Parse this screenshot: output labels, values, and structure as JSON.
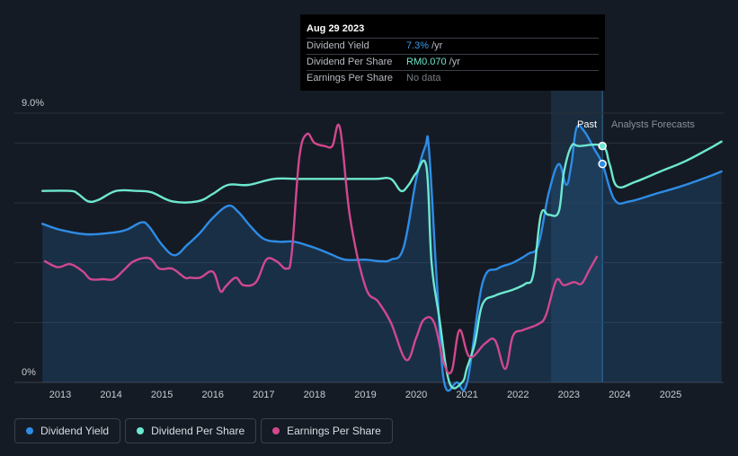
{
  "tooltip": {
    "date": "Aug 29 2023",
    "rows": [
      {
        "label": "Dividend Yield",
        "value": "7.3%",
        "unit": "/yr",
        "color": "#3b9bea"
      },
      {
        "label": "Dividend Per Share",
        "value": "RM0.070",
        "unit": "/yr",
        "color": "#6de8d0"
      },
      {
        "label": "Earnings Per Share",
        "value": "No data",
        "unit": "",
        "color": "#7a7f87"
      }
    ]
  },
  "legend": [
    {
      "label": "Dividend Yield",
      "color": "#2e8ce6"
    },
    {
      "label": "Dividend Per Share",
      "color": "#6de8d0"
    },
    {
      "label": "Earnings Per Share",
      "color": "#d0488f"
    }
  ],
  "chart_data": {
    "type": "line",
    "y_top_label": "9.0%",
    "y_bottom_label": "0%",
    "ylim": [
      0,
      9
    ],
    "xlim": [
      2012.65,
      2026.0
    ],
    "x_ticks": [
      "2013",
      "2014",
      "2015",
      "2016",
      "2017",
      "2018",
      "2019",
      "2020",
      "2021",
      "2022",
      "2023",
      "2024",
      "2025"
    ],
    "past_label": "Past",
    "forecast_label": "Analysts Forecasts",
    "past_region": [
      2022.65,
      2023.66
    ],
    "grid": true,
    "series": [
      {
        "name": "Dividend Yield",
        "color": "#2e8ce6",
        "fill": true,
        "x": [
          2012.65,
          2013.0,
          2013.5,
          2014.0,
          2014.3,
          2014.6,
          2014.75,
          2015.0,
          2015.25,
          2015.5,
          2015.75,
          2016.0,
          2016.3,
          2016.5,
          2016.75,
          2017.0,
          2017.3,
          2017.6,
          2018.0,
          2018.3,
          2018.6,
          2019.0,
          2019.3,
          2019.5,
          2019.75,
          2020.0,
          2020.18,
          2020.25,
          2020.4,
          2020.55,
          2020.8,
          2021.0,
          2021.3,
          2021.6,
          2021.9,
          2022.2,
          2022.4,
          2022.6,
          2022.8,
          2022.95,
          2023.05,
          2023.15,
          2023.3,
          2023.5,
          2023.66,
          2023.9,
          2024.2,
          2024.7,
          2025.2,
          2025.7,
          2026.0
        ],
        "y": [
          5.3,
          5.1,
          4.95,
          5.0,
          5.1,
          5.35,
          5.2,
          4.6,
          4.25,
          4.6,
          5.0,
          5.5,
          5.9,
          5.7,
          5.2,
          4.8,
          4.7,
          4.7,
          4.5,
          4.3,
          4.1,
          4.1,
          4.05,
          4.1,
          4.5,
          6.8,
          7.9,
          7.8,
          3.5,
          0.0,
          0.0,
          0.0,
          3.3,
          3.8,
          4.0,
          4.3,
          4.6,
          6.3,
          7.3,
          6.6,
          7.3,
          8.5,
          8.4,
          7.8,
          7.3,
          6.1,
          6.05,
          6.3,
          6.55,
          6.85,
          7.05
        ]
      },
      {
        "name": "Dividend Per Share",
        "color": "#6de8d0",
        "fill": false,
        "x": [
          2012.65,
          2013.2,
          2013.35,
          2013.55,
          2013.75,
          2014.1,
          2014.5,
          2014.8,
          2015.2,
          2015.7,
          2016.0,
          2016.3,
          2016.7,
          2017.2,
          2017.7,
          2018.2,
          2018.7,
          2019.2,
          2019.5,
          2019.7,
          2019.85,
          2020.0,
          2020.2,
          2020.3,
          2020.45,
          2020.65,
          2020.9,
          2021.0,
          2021.15,
          2021.3,
          2021.55,
          2021.9,
          2022.15,
          2022.3,
          2022.45,
          2022.6,
          2022.8,
          2022.9,
          2023.05,
          2023.2,
          2023.66,
          2023.8,
          2023.95,
          2024.3,
          2024.8,
          2025.3,
          2025.8,
          2026.0
        ],
        "y": [
          6.4,
          6.4,
          6.3,
          6.05,
          6.1,
          6.4,
          6.4,
          6.35,
          6.05,
          6.05,
          6.3,
          6.6,
          6.6,
          6.8,
          6.8,
          6.8,
          6.8,
          6.8,
          6.8,
          6.4,
          6.6,
          7.0,
          7.2,
          4.0,
          2.2,
          0.0,
          0.0,
          0.5,
          1.3,
          2.6,
          2.9,
          3.1,
          3.3,
          3.6,
          5.6,
          5.6,
          5.7,
          7.0,
          7.9,
          7.9,
          7.9,
          7.3,
          6.55,
          6.7,
          7.05,
          7.4,
          7.85,
          8.05
        ]
      },
      {
        "name": "Earnings Per Share",
        "color": "#d0488f",
        "fill": false,
        "x": [
          2012.7,
          2012.95,
          2013.2,
          2013.45,
          2013.6,
          2013.85,
          2014.05,
          2014.25,
          2014.45,
          2014.75,
          2014.95,
          2015.2,
          2015.45,
          2015.55,
          2015.75,
          2016.0,
          2016.15,
          2016.25,
          2016.45,
          2016.6,
          2016.85,
          2017.05,
          2017.25,
          2017.45,
          2017.55,
          2017.7,
          2017.85,
          2018.0,
          2018.2,
          2018.35,
          2018.5,
          2018.7,
          2019.0,
          2019.25,
          2019.5,
          2019.8,
          2020.0,
          2020.15,
          2020.35,
          2020.55,
          2020.7,
          2020.85,
          2021.05,
          2021.35,
          2021.55,
          2021.75,
          2021.9,
          2022.1,
          2022.4,
          2022.55,
          2022.75,
          2022.9,
          2023.1,
          2023.25,
          2023.4,
          2023.55
        ],
        "y": [
          4.05,
          3.85,
          3.95,
          3.7,
          3.45,
          3.45,
          3.45,
          3.75,
          4.05,
          4.15,
          3.8,
          3.8,
          3.5,
          3.5,
          3.5,
          3.7,
          3.05,
          3.2,
          3.5,
          3.25,
          3.35,
          4.1,
          4.05,
          3.8,
          4.3,
          7.5,
          8.3,
          8.0,
          7.9,
          7.9,
          8.5,
          5.5,
          3.2,
          2.7,
          2.0,
          0.75,
          1.5,
          2.1,
          2.0,
          0.6,
          0.4,
          1.75,
          0.85,
          1.3,
          1.4,
          0.45,
          1.55,
          1.75,
          1.95,
          2.25,
          3.4,
          3.25,
          3.35,
          3.3,
          3.75,
          4.2
        ]
      }
    ],
    "markers": [
      {
        "series": "Dividend Per Share",
        "x": 2023.66,
        "y": 7.9
      },
      {
        "series": "Dividend Yield",
        "x": 2023.66,
        "y": 7.3
      }
    ]
  }
}
